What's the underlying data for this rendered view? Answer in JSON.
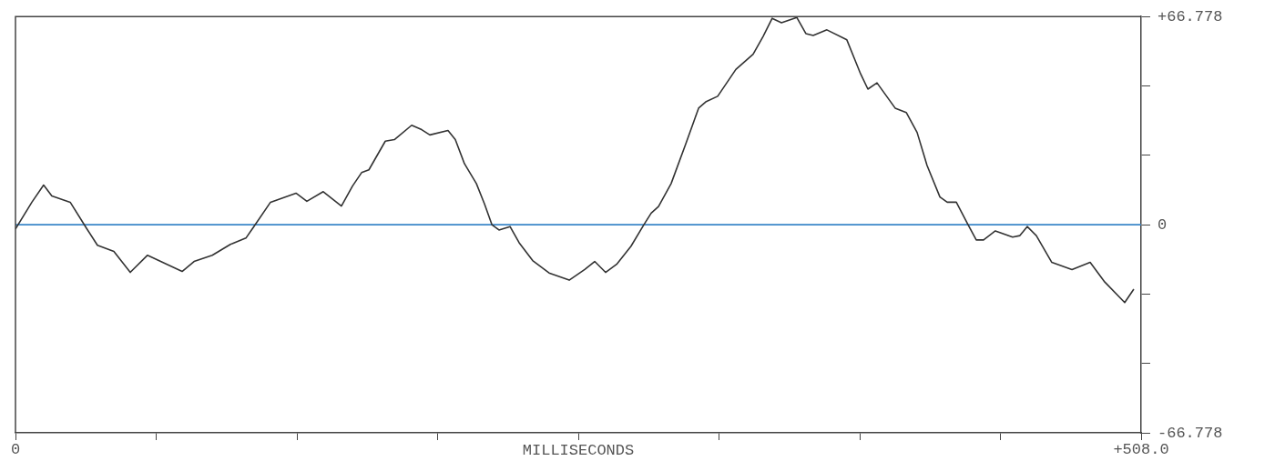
{
  "chart_data": {
    "type": "line",
    "xlabel": "MILLISECONDS",
    "x": [
      0,
      7.4,
      12.7,
      16.4,
      24.7,
      32.1,
      37.0,
      44.4,
      51.8,
      59.6,
      75.2,
      80.6,
      88.8,
      97.0,
      104.0,
      107.3,
      115.1,
      126.6,
      131.5,
      138.9,
      147.1,
      152.1,
      156.2,
      159.5,
      166.9,
      171.0,
      178.8,
      183.3,
      187.0,
      195.2,
      198.5,
      202.6,
      208.0,
      211.7,
      215.0,
      218.2,
      223.2,
      227.3,
      233.4,
      240.8,
      249.9,
      256.9,
      261.4,
      266.3,
      271.3,
      277.8,
      283.6,
      286.9,
      290.2,
      295.9,
      302.5,
      308.3,
      311.5,
      316.9,
      325.1,
      332.9,
      337.4,
      341.5,
      345.7,
      352.6,
      356.7,
      360.0,
      366.2,
      375.2,
      378.5,
      381.4,
      384.7,
      388.8,
      397.0,
      402.0,
      406.9,
      411.4,
      417.2,
      420.5,
      424.6,
      429.9,
      433.6,
      436.9,
      442.2,
      450.0,
      453.3,
      456.6,
      460.7,
      467.7,
      476.8,
      485.0,
      491.6,
      500.6,
      504.7
    ],
    "series": [
      {
        "color": "#333333",
        "values": [
          -1.4,
          7.2,
          12.7,
          9.2,
          7.2,
          -1.2,
          -6.6,
          -8.6,
          -15.3,
          -9.8,
          -15.0,
          -11.8,
          -9.8,
          -6.3,
          -4.3,
          -0.9,
          7.2,
          10.1,
          7.5,
          10.6,
          6.0,
          12.4,
          16.7,
          17.6,
          26.8,
          27.3,
          31.9,
          30.5,
          28.8,
          30.2,
          27.3,
          19.6,
          13.2,
          6.6,
          0,
          -1.7,
          -0.6,
          -5.8,
          -11.5,
          -15.5,
          -17.8,
          -14.4,
          -11.8,
          -15.3,
          -12.7,
          -6.9,
          0,
          3.7,
          5.8,
          13.2,
          25.9,
          37.4,
          39.4,
          41.2,
          49.8,
          54.7,
          60.4,
          66.2,
          64.8,
          66.5,
          61.3,
          60.7,
          62.5,
          59.3,
          53.5,
          48.4,
          43.5,
          45.5,
          37.4,
          36.0,
          29.6,
          19.0,
          8.9,
          7.2,
          7.2,
          0,
          -4.9,
          -4.9,
          -2.0,
          -4.0,
          -3.5,
          -0.6,
          -3.5,
          -12.1,
          -14.4,
          -12.1,
          -18.4,
          -25.0,
          -20.7
        ]
      }
    ],
    "xlim": [
      0,
      508
    ],
    "xticks": [
      {
        "value": 0,
        "label": "0"
      },
      {
        "value": 63.5,
        "label": null
      },
      {
        "value": 127,
        "label": null
      },
      {
        "value": 190.5,
        "label": null
      },
      {
        "value": 254,
        "label": null
      },
      {
        "value": 317.5,
        "label": null
      },
      {
        "value": 381,
        "label": null
      },
      {
        "value": 444.5,
        "label": null
      },
      {
        "value": 508,
        "label": "+508.0"
      }
    ],
    "ylim": [
      -66.778,
      66.778
    ],
    "yticks": [
      {
        "value": -66.778,
        "label": "-66.778"
      },
      {
        "value": -44.519,
        "label": null
      },
      {
        "value": -22.259,
        "label": null
      },
      {
        "value": 0,
        "label": "0"
      },
      {
        "value": 22.259,
        "label": null
      },
      {
        "value": 44.519,
        "label": null
      },
      {
        "value": 66.778,
        "label": "+66.778"
      }
    ],
    "ref_lines": [
      {
        "axis": "y",
        "value": 0,
        "color": "#3a86c8"
      }
    ],
    "grid": false,
    "legend": false
  }
}
